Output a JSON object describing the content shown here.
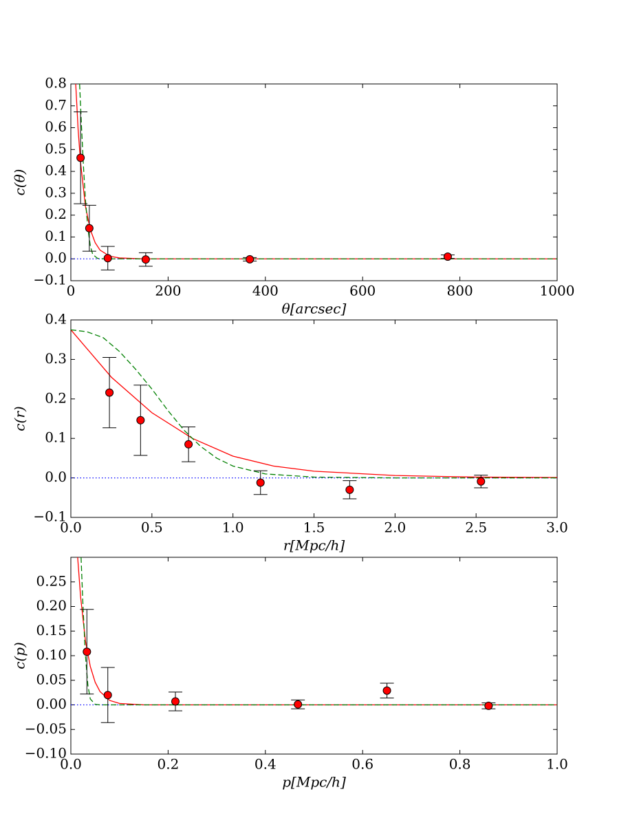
{
  "chart_data": [
    {
      "type": "scatter",
      "xlabel": "θ[arcsec]",
      "ylabel": "c(θ)",
      "xlim": [
        0,
        1000
      ],
      "ylim": [
        -0.1,
        0.8
      ],
      "xticks": [
        0,
        200,
        400,
        600,
        800,
        1000
      ],
      "yticks": [
        {
          "value": -0.1,
          "label": "−0.1"
        },
        {
          "value": 0,
          "label": "0.0"
        },
        0.1,
        0.2,
        0.3,
        0.4,
        0.5,
        0.6,
        0.7,
        0.8
      ],
      "series": [
        {
          "kind": "line",
          "style": "dotted",
          "color": "#0000ff",
          "x": [
            0,
            1000
          ],
          "values": [
            0,
            0
          ]
        },
        {
          "kind": "line",
          "style": "solid",
          "color": "#ff0000",
          "x": [
            10,
            15,
            20,
            30,
            40,
            50,
            60,
            80,
            100,
            150,
            1000
          ],
          "values": [
            0.8,
            0.59,
            0.44,
            0.24,
            0.134,
            0.074,
            0.04,
            0.012,
            0.004,
            0,
            0
          ]
        },
        {
          "kind": "line",
          "style": "dashed",
          "color": "#008000",
          "x": [
            18,
            22,
            26,
            30,
            35,
            40,
            45,
            55,
            70,
            1000
          ],
          "values": [
            0.8,
            0.6,
            0.42,
            0.27,
            0.14,
            0.06,
            0.02,
            0.002,
            0,
            0
          ]
        },
        {
          "kind": "points",
          "color": "#ff0000",
          "x": [
            20,
            38,
            76,
            154,
            368,
            775
          ],
          "values": [
            0.462,
            0.14,
            0.003,
            -0.003,
            -0.002,
            0.01
          ],
          "errors": [
            0.21,
            0.105,
            0.054,
            0.031,
            0.008,
            0.008
          ]
        }
      ]
    },
    {
      "type": "scatter",
      "xlabel": "r[Mpc/h]",
      "ylabel": "c(r)",
      "xlim": [
        0,
        3
      ],
      "ylim": [
        -0.1,
        0.4
      ],
      "xticks": [
        {
          "value": 0,
          "label": "0.0"
        },
        0.5,
        {
          "value": 1,
          "label": "1.0"
        },
        1.5,
        {
          "value": 2,
          "label": "2.0"
        },
        2.5,
        {
          "value": 3,
          "label": "3.0"
        }
      ],
      "yticks": [
        {
          "value": -0.1,
          "label": "−0.1"
        },
        {
          "value": 0,
          "label": "0.0"
        },
        0.1,
        0.2,
        0.3,
        0.4
      ],
      "series": [
        {
          "kind": "line",
          "style": "dotted",
          "color": "#0000ff",
          "x": [
            0,
            3
          ],
          "values": [
            0,
            0
          ]
        },
        {
          "kind": "line",
          "style": "solid",
          "color": "#ff0000",
          "x": [
            0,
            0.25,
            0.5,
            0.75,
            1,
            1.25,
            1.5,
            2,
            2.5,
            3
          ],
          "values": [
            0.375,
            0.255,
            0.165,
            0.1,
            0.055,
            0.03,
            0.017,
            0.006,
            0.002,
            0.001
          ]
        },
        {
          "kind": "line",
          "style": "dashed",
          "color": "#008000",
          "x": [
            0,
            0.1,
            0.2,
            0.3,
            0.4,
            0.5,
            0.6,
            0.7,
            0.8,
            0.9,
            1,
            1.2,
            1.5,
            2,
            3
          ],
          "values": [
            0.375,
            0.37,
            0.355,
            0.32,
            0.275,
            0.225,
            0.17,
            0.12,
            0.08,
            0.05,
            0.03,
            0.01,
            0.002,
            0,
            0
          ]
        },
        {
          "kind": "points",
          "color": "#ff0000",
          "x": [
            0.238,
            0.43,
            0.726,
            1.17,
            1.72,
            2.53
          ],
          "values": [
            0.216,
            0.146,
            0.085,
            -0.012,
            -0.03,
            -0.009
          ],
          "errors": [
            0.089,
            0.089,
            0.044,
            0.03,
            0.023,
            0.016
          ]
        }
      ]
    },
    {
      "type": "scatter",
      "xlabel": "p[Mpc/h]",
      "ylabel": "c(p)",
      "xlim": [
        0,
        1
      ],
      "ylim": [
        -0.1,
        0.3
      ],
      "xticks": [
        {
          "value": 0,
          "label": "0.0"
        },
        0.2,
        0.4,
        0.6,
        0.8,
        {
          "value": 1,
          "label": "1.0"
        }
      ],
      "yticks": [
        {
          "value": -0.1,
          "label": "−0.10"
        },
        {
          "value": -0.05,
          "label": "−0.05"
        },
        {
          "value": 0,
          "label": "0.00"
        },
        0.05,
        {
          "value": 0.1,
          "label": "0.10"
        },
        0.15,
        {
          "value": 0.2,
          "label": "0.20"
        },
        0.25
      ],
      "series": [
        {
          "kind": "line",
          "style": "dotted",
          "color": "#0000ff",
          "x": [
            0,
            1
          ],
          "values": [
            0,
            0
          ]
        },
        {
          "kind": "line",
          "style": "solid",
          "color": "#ff0000",
          "x": [
            0.014,
            0.02,
            0.03,
            0.04,
            0.05,
            0.06,
            0.08,
            0.1,
            0.15,
            1
          ],
          "values": [
            0.3,
            0.22,
            0.13,
            0.078,
            0.046,
            0.027,
            0.009,
            0.003,
            0,
            0
          ]
        },
        {
          "kind": "line",
          "style": "dashed",
          "color": "#008000",
          "x": [
            0.021,
            0.025,
            0.03,
            0.035,
            0.04,
            0.05,
            0.06,
            1
          ],
          "values": [
            0.3,
            0.2,
            0.1,
            0.04,
            0.012,
            0.001,
            0,
            0
          ]
        },
        {
          "kind": "points",
          "color": "#ff0000",
          "x": [
            0.033,
            0.076,
            0.215,
            0.467,
            0.65,
            0.859
          ],
          "values": [
            0.108,
            0.02,
            0.007,
            0.001,
            0.029,
            -0.002
          ],
          "errors": [
            0.086,
            0.056,
            0.019,
            0.009,
            0.015,
            0.006
          ]
        }
      ]
    }
  ]
}
